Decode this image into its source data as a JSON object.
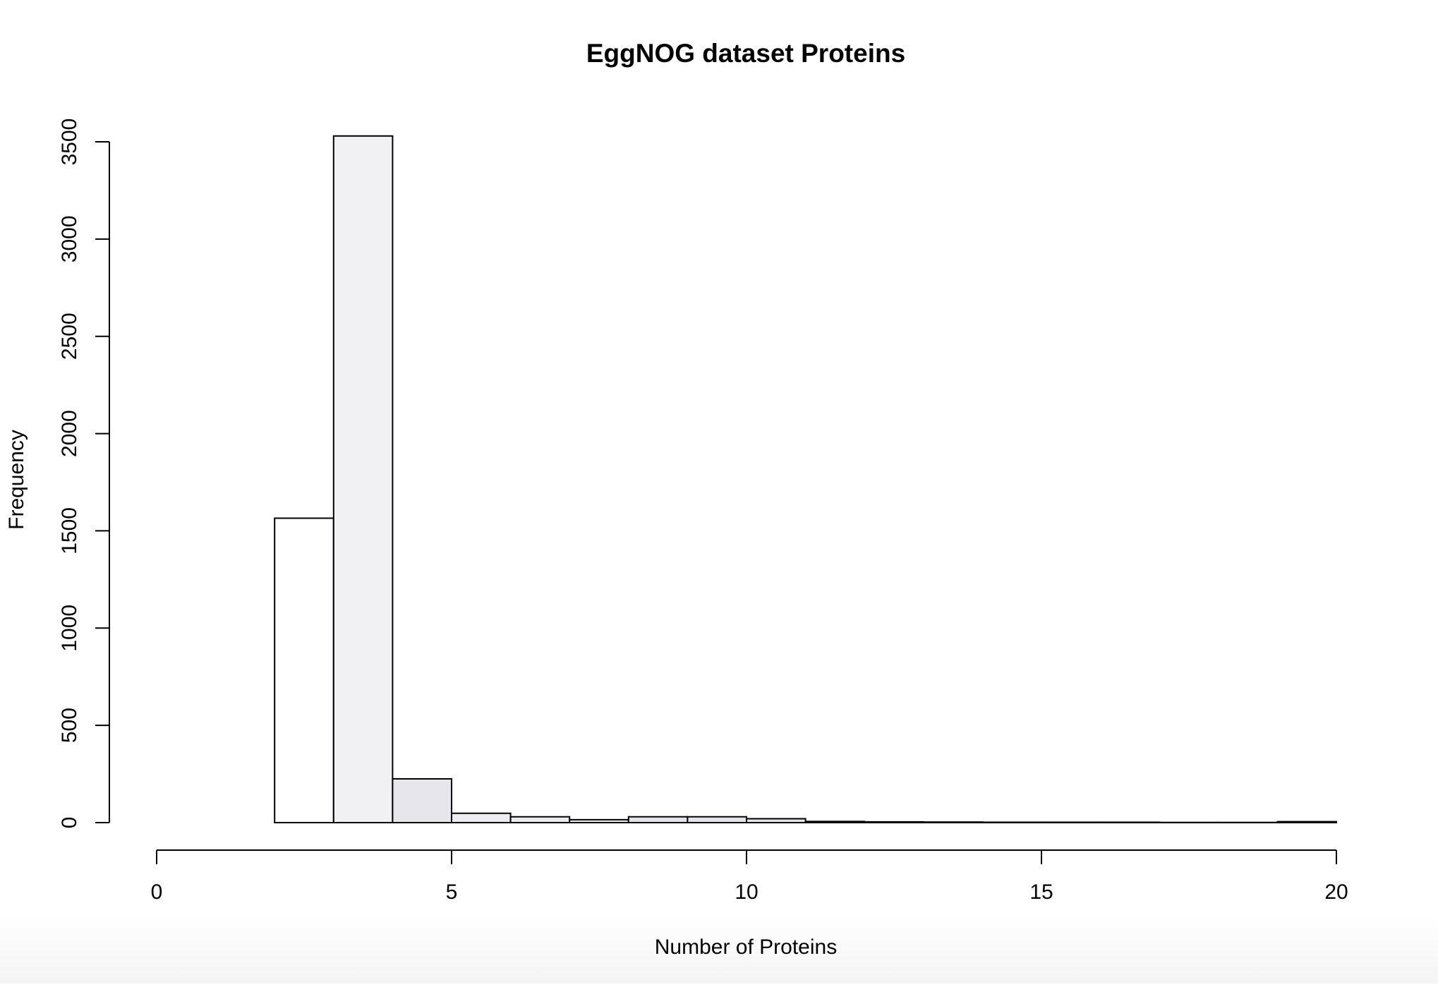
{
  "chart_data": {
    "type": "bar",
    "title": "EggNOG dataset Proteins",
    "xlabel": "Number of Proteins",
    "ylabel": "Frequency",
    "xlim": [
      0,
      20
    ],
    "ylim": [
      0,
      3500
    ],
    "x_ticks": [
      "0",
      "5",
      "10",
      "15",
      "20"
    ],
    "y_ticks": [
      "0",
      "500",
      "1000",
      "1500",
      "2000",
      "2500",
      "3000",
      "3500"
    ],
    "bin_edges": [
      2,
      3,
      4,
      5,
      6,
      7,
      8,
      9,
      10,
      11,
      12,
      13,
      14,
      15,
      16,
      17,
      18,
      19,
      20
    ],
    "values": [
      1565,
      3530,
      225,
      48,
      30,
      15,
      30,
      30,
      20,
      6,
      4,
      3,
      2,
      2,
      2,
      1,
      1,
      5
    ],
    "colors": [
      "#ffffff",
      "#f1f1f3",
      "#e6e6ec",
      "#ededf1",
      "#ececf0",
      "#ebebef",
      "#e4e4ea",
      "#e4e4ea",
      "#e6e6ec",
      "#f0f0f3",
      "#f2f2f4",
      "#f3f3f5",
      "#f4f4f6",
      "#f4f4f6",
      "#f5f5f6",
      "#f5f5f6",
      "#f5f5f6",
      "#f0f0f3"
    ],
    "grid": false,
    "legend": "none"
  }
}
